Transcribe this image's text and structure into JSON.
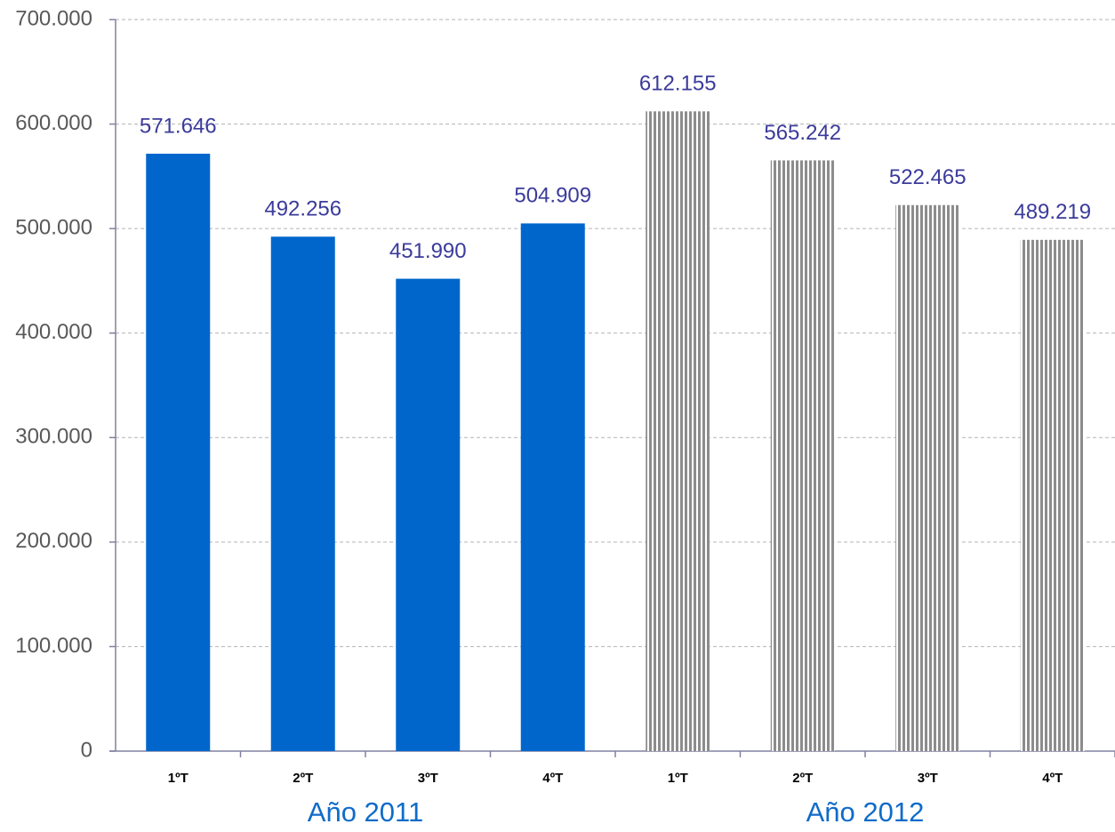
{
  "chart_data": {
    "type": "bar",
    "groups": [
      {
        "label": "Año 2011",
        "categories": [
          "1ºT",
          "2ºT",
          "3ºT",
          "4ºT"
        ],
        "values": [
          571646,
          492256,
          451990,
          504909
        ],
        "value_labels": [
          "571.646",
          "492.256",
          "451.990",
          "504.909"
        ],
        "color": "#0066cc",
        "pattern": "solid"
      },
      {
        "label": "Año 2012",
        "categories": [
          "1ºT",
          "2ºT",
          "3ºT",
          "4ºT"
        ],
        "values": [
          612155,
          565242,
          522465,
          489219
        ],
        "value_labels": [
          "612.155",
          "565.242",
          "522.465",
          "489.219"
        ],
        "color": "#8c8c8c",
        "pattern": "vertical-stripes"
      }
    ],
    "ylim": [
      0,
      700000
    ],
    "yticks": [
      0,
      {
        "value": 100000,
        "label": "100.000"
      },
      {
        "value": 200000,
        "label": "200.000"
      },
      {
        "value": 300000,
        "label": "300.000"
      },
      {
        "value": 400000,
        "label": "400.000"
      },
      {
        "value": 500000,
        "label": "500.000"
      },
      {
        "value": 600000,
        "label": "600.000"
      },
      {
        "value": 700000,
        "label": "700.000"
      }
    ],
    "grid": true
  }
}
